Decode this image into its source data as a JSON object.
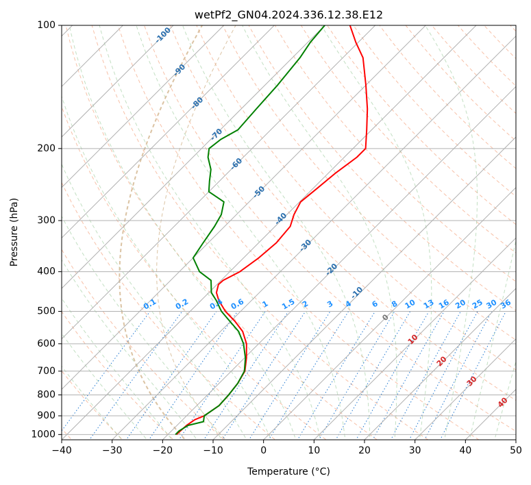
{
  "chart_data": {
    "type": "line",
    "title": "wetPf2_GN04.2024.336.12.38.E12",
    "xlabel": "Temperature (°C)",
    "ylabel": "Pressure (hPa)",
    "xlim": [
      -40,
      50
    ],
    "ylim": [
      1030,
      100
    ],
    "y_scale": "log",
    "skew": true,
    "grid": true,
    "xticks": [
      -40,
      -30,
      -20,
      -10,
      0,
      10,
      20,
      30,
      40,
      50
    ],
    "yticks": [
      100,
      200,
      300,
      400,
      500,
      600,
      700,
      800,
      900,
      1000
    ],
    "isotherm_labels": [
      -100,
      -90,
      -80,
      -70,
      -60,
      -50,
      -40,
      -30,
      -20,
      -10
    ],
    "mixing_ratio_labels": [
      "0.1",
      "0.2",
      "0.4",
      "0.6",
      "1",
      "1.5",
      "2",
      "3",
      "4",
      "6",
      "8",
      "10",
      "13",
      "16",
      "20",
      "25",
      "30",
      "36"
    ],
    "moist_adiabat_labels": [
      0,
      10,
      20,
      30,
      40
    ],
    "series": [
      {
        "name": "temperature",
        "color": "#ff0000",
        "points": [
          [
            1000,
            -18.3
          ],
          [
            950,
            -18.1
          ],
          [
            920,
            -17.6
          ],
          [
            900,
            -16.5
          ],
          [
            850,
            -15.6
          ],
          [
            800,
            -15.8
          ],
          [
            750,
            -16.3
          ],
          [
            700,
            -17.3
          ],
          [
            650,
            -19.6
          ],
          [
            600,
            -22.4
          ],
          [
            560,
            -25.6
          ],
          [
            530,
            -29.0
          ],
          [
            500,
            -33.0
          ],
          [
            470,
            -36.5
          ],
          [
            450,
            -38.5
          ],
          [
            430,
            -39.7
          ],
          [
            420,
            -39.6
          ],
          [
            400,
            -38.0
          ],
          [
            370,
            -37.0
          ],
          [
            340,
            -36.5
          ],
          [
            310,
            -37.0
          ],
          [
            290,
            -38.6
          ],
          [
            270,
            -39.8
          ],
          [
            250,
            -39.2
          ],
          [
            230,
            -38.6
          ],
          [
            210,
            -37.5
          ],
          [
            200,
            -37.5
          ],
          [
            180,
            -41.0
          ],
          [
            160,
            -45.0
          ],
          [
            140,
            -50.0
          ],
          [
            120,
            -56.0
          ],
          [
            110,
            -60.5
          ],
          [
            100,
            -65.0
          ]
        ]
      },
      {
        "name": "dewpoint",
        "color": "#008000",
        "points": [
          [
            1000,
            -18.5
          ],
          [
            980,
            -18.5
          ],
          [
            950,
            -17.8
          ],
          [
            930,
            -15.5
          ],
          [
            900,
            -16.5
          ],
          [
            850,
            -15.6
          ],
          [
            800,
            -15.8
          ],
          [
            750,
            -16.3
          ],
          [
            700,
            -17.4
          ],
          [
            650,
            -19.8
          ],
          [
            600,
            -23.0
          ],
          [
            560,
            -26.4
          ],
          [
            530,
            -30.0
          ],
          [
            500,
            -33.8
          ],
          [
            470,
            -37.0
          ],
          [
            450,
            -39.5
          ],
          [
            420,
            -42.0
          ],
          [
            400,
            -46.0
          ],
          [
            370,
            -50.0
          ],
          [
            340,
            -51.0
          ],
          [
            310,
            -52.0
          ],
          [
            290,
            -53.0
          ],
          [
            270,
            -55.0
          ],
          [
            255,
            -60.0
          ],
          [
            240,
            -62.0
          ],
          [
            225,
            -64.0
          ],
          [
            210,
            -67.0
          ],
          [
            200,
            -68.5
          ],
          [
            190,
            -68.0
          ],
          [
            180,
            -66.5
          ],
          [
            160,
            -67.0
          ],
          [
            140,
            -67.5
          ],
          [
            120,
            -68.5
          ],
          [
            110,
            -69.5
          ],
          [
            100,
            -70.0
          ]
        ]
      }
    ]
  }
}
